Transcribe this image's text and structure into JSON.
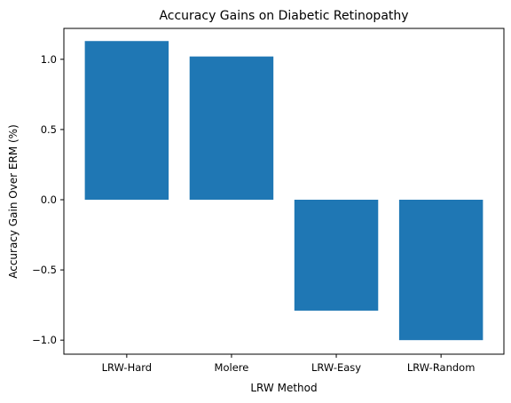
{
  "chart_data": {
    "type": "bar",
    "title": "Accuracy Gains on Diabetic Retinopathy",
    "xlabel": "LRW Method",
    "ylabel": "Accuracy Gain Over ERM (%)",
    "categories": [
      "LRW-Hard",
      "Molere",
      "LRW-Easy",
      "LRW-Random"
    ],
    "values": [
      1.13,
      1.02,
      -0.79,
      -1.0
    ],
    "ylim": [
      -1.1,
      1.22
    ],
    "yticks": [
      -1.0,
      -0.5,
      0.0,
      0.5,
      1.0
    ],
    "ytick_labels": [
      "−1.0",
      "−0.5",
      "0.0",
      "0.5",
      "1.0"
    ],
    "bar_color": "#1f77b4",
    "grid": false,
    "legend": "none"
  }
}
